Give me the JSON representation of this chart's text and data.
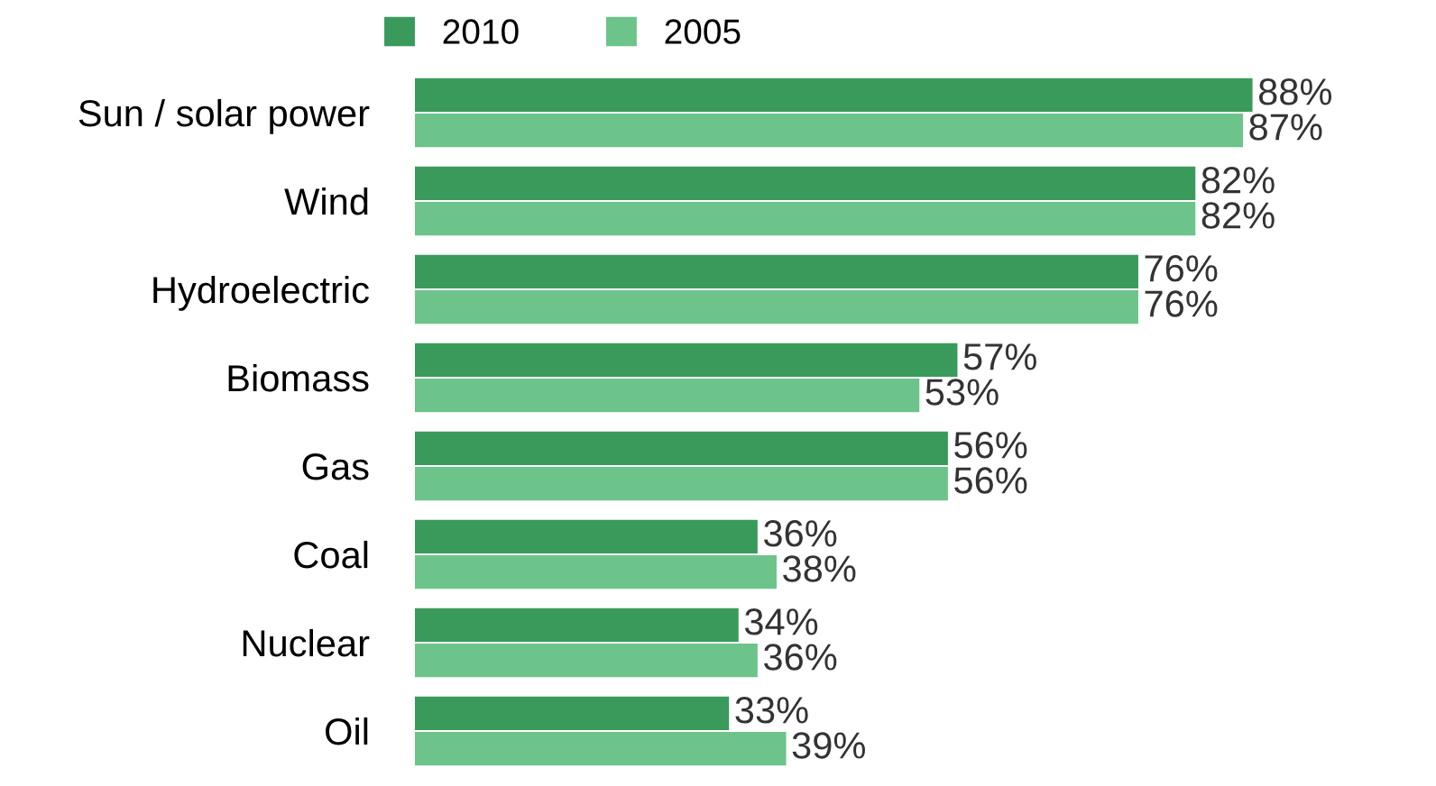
{
  "chart_data": {
    "type": "bar",
    "orientation": "horizontal",
    "legend": "top",
    "categories": [
      "Sun / solar power",
      "Wind",
      "Hydroelectric",
      "Biomass",
      "Gas",
      "Coal",
      "Nuclear",
      "Oil"
    ],
    "series": [
      {
        "name": "2010",
        "color": "#3a9a5b",
        "values": [
          88,
          82,
          76,
          57,
          56,
          36,
          34,
          33
        ],
        "value_labels": [
          "88%",
          "82%",
          "76%",
          "57%",
          "56%",
          "36%",
          "34%",
          "33%"
        ]
      },
      {
        "name": "2005",
        "color": "#6cc48a",
        "values": [
          87,
          82,
          76,
          53,
          56,
          38,
          36,
          39
        ],
        "value_labels": [
          "87%",
          "82%",
          "76%",
          "53%",
          "56%",
          "38%",
          "36%",
          "39%"
        ]
      }
    ]
  }
}
